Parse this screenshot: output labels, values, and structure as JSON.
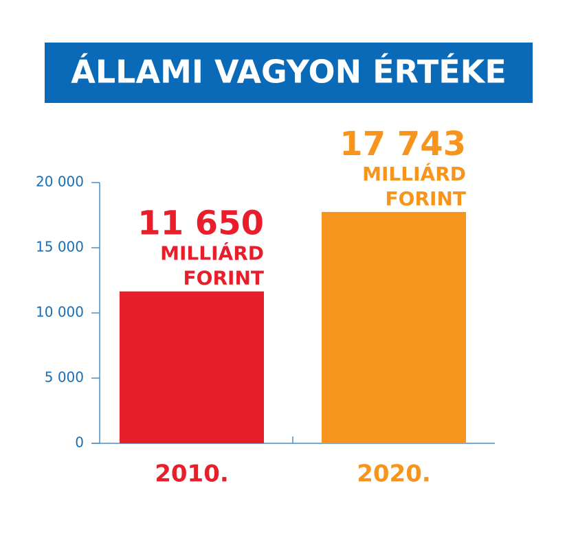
{
  "chart_data": {
    "type": "bar",
    "title": "ÁLLAMI VAGYON ÉRTÉKE",
    "categories": [
      "2010.",
      "2020."
    ],
    "values": [
      11650,
      17743
    ],
    "value_labels": [
      "11 650",
      "17 743"
    ],
    "unit_label": [
      "MILLIÁRD",
      "FORINT"
    ],
    "colors": [
      "#e81f2b",
      "#f7941d"
    ],
    "ylim": [
      0,
      20000
    ],
    "yticks": [
      0,
      {
        "value": 5000,
        "label": "5 000"
      },
      {
        "value": 10000,
        "label": "10 000"
      },
      {
        "value": 15000,
        "label": "15 000"
      },
      {
        "value": 20000,
        "label": "20 000"
      }
    ]
  }
}
